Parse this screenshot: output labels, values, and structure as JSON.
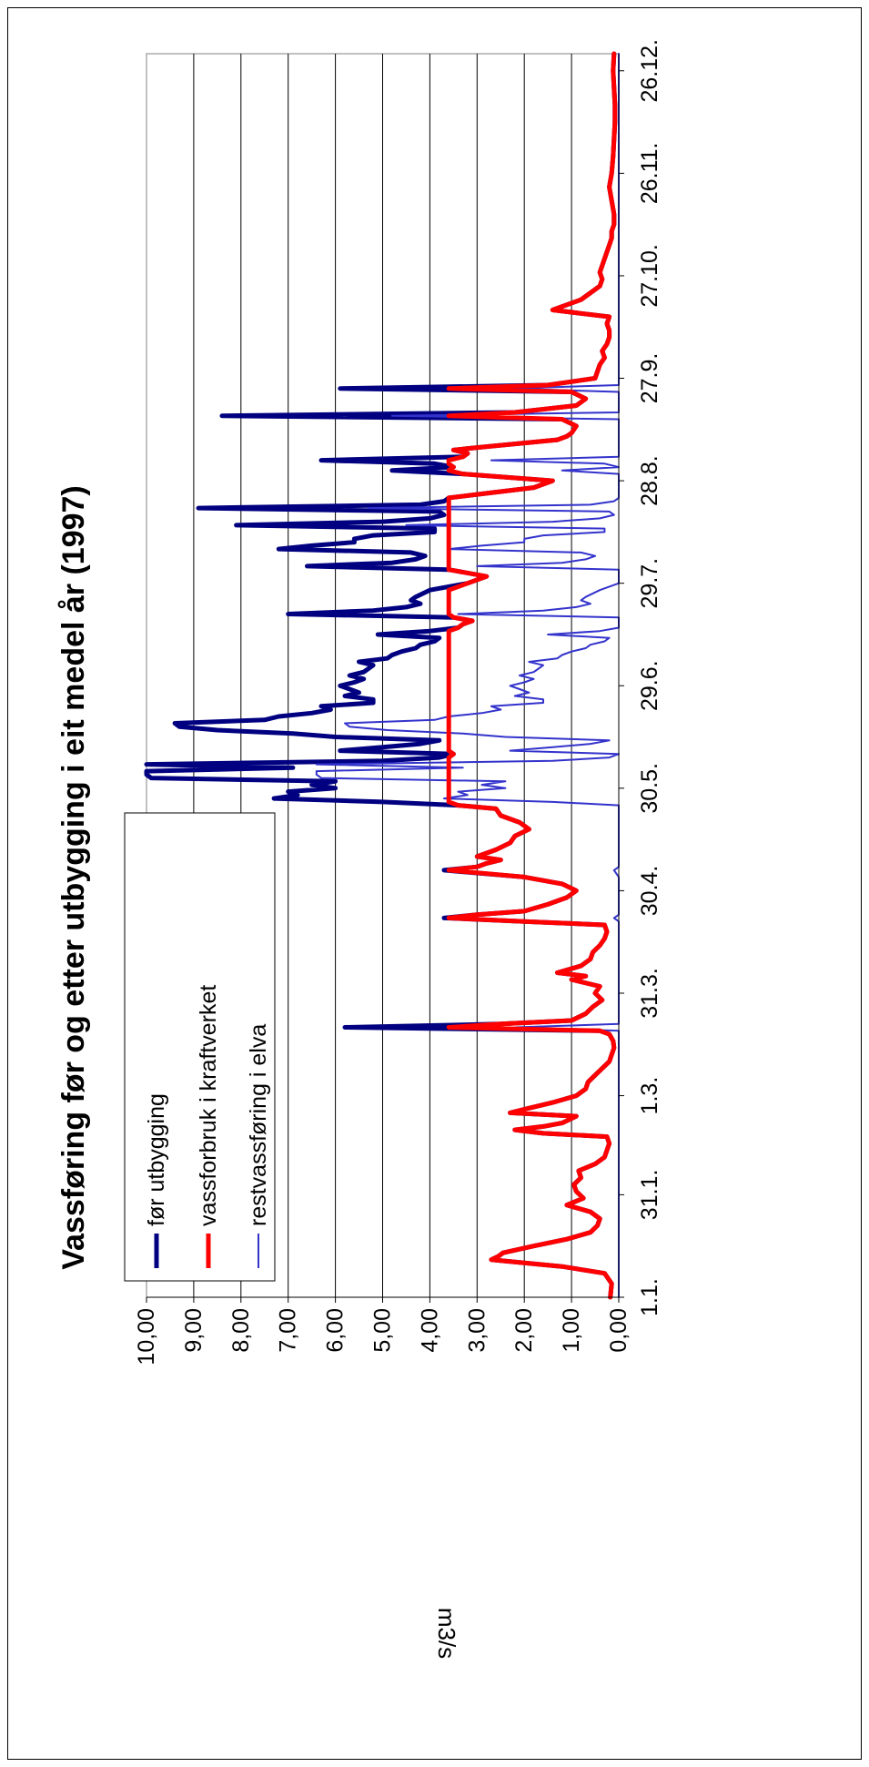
{
  "chart_data": {
    "type": "line",
    "title": "Vassføring før og etter utbygging i eit medel år (1997)",
    "ylabel": "m3/s",
    "xlabel": "",
    "ylim": [
      0,
      10
    ],
    "y_ticks": [
      "0,00",
      "1,00",
      "2,00",
      "3,00",
      "4,00",
      "5,00",
      "6,00",
      "7,00",
      "8,00",
      "9,00",
      "10,00"
    ],
    "x_ticks": [
      "1.1.",
      "31.1.",
      "1.3.",
      "31.3.",
      "30.4.",
      "30.5.",
      "29.6.",
      "29.7.",
      "28.8.",
      "27.9.",
      "27.10.",
      "26.11.",
      "26.12."
    ],
    "x_tick_days": [
      1,
      31,
      60,
      90,
      120,
      150,
      180,
      210,
      240,
      270,
      300,
      330,
      360
    ],
    "x_range_days": [
      1,
      365
    ],
    "grid": true,
    "orientation": "rotated-90",
    "legend_position": "top-left",
    "capacity": 3.6,
    "series": [
      {
        "name": "før utbygging",
        "color": "#000080",
        "points": [
          [
            1,
            0.18
          ],
          [
            5,
            0.15
          ],
          [
            8,
            0.3
          ],
          [
            10,
            1.2
          ],
          [
            12,
            2.7
          ],
          [
            13,
            2.55
          ],
          [
            14,
            2.45
          ],
          [
            16,
            1.8
          ],
          [
            18,
            1.1
          ],
          [
            20,
            0.6
          ],
          [
            22,
            0.45
          ],
          [
            24,
            0.4
          ],
          [
            26,
            0.6
          ],
          [
            28,
            1.1
          ],
          [
            30,
            0.75
          ],
          [
            32,
            0.9
          ],
          [
            34,
            0.95
          ],
          [
            36,
            0.8
          ],
          [
            38,
            0.85
          ],
          [
            40,
            0.5
          ],
          [
            42,
            0.3
          ],
          [
            44,
            0.25
          ],
          [
            46,
            0.2
          ],
          [
            48,
            0.25
          ],
          [
            49,
            1.6
          ],
          [
            50,
            2.2
          ],
          [
            51,
            1.6
          ],
          [
            52,
            1.2
          ],
          [
            54,
            0.9
          ],
          [
            55,
            2.3
          ],
          [
            56,
            2.0
          ],
          [
            58,
            1.4
          ],
          [
            60,
            0.9
          ],
          [
            62,
            0.7
          ],
          [
            64,
            0.65
          ],
          [
            66,
            0.5
          ],
          [
            68,
            0.35
          ],
          [
            70,
            0.2
          ],
          [
            72,
            0.15
          ],
          [
            74,
            0.1
          ],
          [
            76,
            0.12
          ],
          [
            78,
            0.2
          ],
          [
            79,
            0.4
          ],
          [
            80,
            5.8
          ],
          [
            81,
            2.5
          ],
          [
            82,
            1.0
          ],
          [
            84,
            0.7
          ],
          [
            86,
            0.55
          ],
          [
            88,
            0.35
          ],
          [
            90,
            0.5
          ],
          [
            92,
            0.4
          ],
          [
            94,
            1.0
          ],
          [
            95,
            0.7
          ],
          [
            96,
            1.3
          ],
          [
            98,
            0.8
          ],
          [
            100,
            0.6
          ],
          [
            102,
            0.55
          ],
          [
            104,
            0.4
          ],
          [
            106,
            0.3
          ],
          [
            108,
            0.25
          ],
          [
            110,
            0.3
          ],
          [
            111,
            2.0
          ],
          [
            112,
            3.7
          ],
          [
            113,
            3.0
          ],
          [
            114,
            2.0
          ],
          [
            116,
            1.5
          ],
          [
            118,
            1.1
          ],
          [
            120,
            0.9
          ],
          [
            122,
            1.2
          ],
          [
            124,
            2.0
          ],
          [
            126,
            3.7
          ],
          [
            127,
            3.0
          ],
          [
            128,
            2.8
          ],
          [
            129,
            2.5
          ],
          [
            130,
            3.0
          ],
          [
            132,
            2.6
          ],
          [
            134,
            2.3
          ],
          [
            136,
            2.2
          ],
          [
            138,
            1.9
          ],
          [
            140,
            2.1
          ],
          [
            142,
            2.5
          ],
          [
            144,
            2.6
          ],
          [
            145,
            3.4
          ],
          [
            146,
            5.0
          ],
          [
            147,
            7.3
          ],
          [
            148,
            6.8
          ],
          [
            149,
            7.0
          ],
          [
            150,
            6.0
          ],
          [
            151,
            6.5
          ],
          [
            152,
            6.0
          ],
          [
            153,
            9.9
          ],
          [
            154,
            10.0
          ],
          [
            155,
            10.0
          ],
          [
            156,
            6.9
          ],
          [
            157,
            10.0
          ],
          [
            158,
            5.0
          ],
          [
            159,
            3.8
          ],
          [
            160,
            3.5
          ],
          [
            161,
            5.9
          ],
          [
            162,
            5.0
          ],
          [
            163,
            4.2
          ],
          [
            164,
            3.8
          ],
          [
            165,
            6.0
          ],
          [
            166,
            6.9
          ],
          [
            167,
            8.5
          ],
          [
            168,
            9.3
          ],
          [
            169,
            9.4
          ],
          [
            170,
            7.5
          ],
          [
            171,
            7.2
          ],
          [
            172,
            6.5
          ],
          [
            173,
            6.1
          ],
          [
            174,
            6.3
          ],
          [
            175,
            5.2
          ],
          [
            176,
            5.2
          ],
          [
            177,
            5.8
          ],
          [
            178,
            5.5
          ],
          [
            179,
            5.7
          ],
          [
            180,
            5.9
          ],
          [
            181,
            5.6
          ],
          [
            182,
            5.4
          ],
          [
            183,
            5.7
          ],
          [
            184,
            5.4
          ],
          [
            185,
            5.3
          ],
          [
            186,
            5.2
          ],
          [
            187,
            5.5
          ],
          [
            188,
            4.9
          ],
          [
            189,
            4.8
          ],
          [
            190,
            4.6
          ],
          [
            191,
            4.3
          ],
          [
            192,
            4.2
          ],
          [
            193,
            3.9
          ],
          [
            194,
            3.8
          ],
          [
            195,
            5.1
          ],
          [
            196,
            4.0
          ],
          [
            197,
            3.4
          ],
          [
            198,
            3.3
          ],
          [
            199,
            3.1
          ],
          [
            200,
            3.5
          ],
          [
            201,
            7.0
          ],
          [
            202,
            5.2
          ],
          [
            203,
            4.5
          ],
          [
            204,
            4.2
          ],
          [
            205,
            4.4
          ],
          [
            206,
            4.3
          ],
          [
            208,
            4.0
          ],
          [
            210,
            3.2
          ],
          [
            212,
            2.8
          ],
          [
            214,
            3.6
          ],
          [
            215,
            6.6
          ],
          [
            216,
            4.8
          ],
          [
            217,
            4.3
          ],
          [
            218,
            4.1
          ],
          [
            219,
            4.4
          ],
          [
            220,
            7.2
          ],
          [
            221,
            6.5
          ],
          [
            222,
            5.6
          ],
          [
            223,
            5.6
          ],
          [
            224,
            5.2
          ],
          [
            225,
            3.9
          ],
          [
            226,
            3.9
          ],
          [
            227,
            8.1
          ],
          [
            228,
            5.0
          ],
          [
            229,
            4.0
          ],
          [
            230,
            3.7
          ],
          [
            231,
            3.8
          ],
          [
            232,
            8.9
          ],
          [
            233,
            4.2
          ],
          [
            234,
            3.7
          ],
          [
            235,
            3.6
          ],
          [
            236,
            3.0
          ],
          [
            238,
            1.8
          ],
          [
            240,
            1.4
          ],
          [
            242,
            3.3
          ],
          [
            243,
            4.8
          ],
          [
            244,
            3.5
          ],
          [
            245,
            3.9
          ],
          [
            246,
            6.3
          ],
          [
            247,
            3.3
          ],
          [
            248,
            3.2
          ],
          [
            249,
            3.5
          ],
          [
            250,
            2.8
          ],
          [
            252,
            1.3
          ],
          [
            253,
            1.1
          ],
          [
            254,
            1.0
          ],
          [
            256,
            0.9
          ],
          [
            258,
            1.2
          ],
          [
            259,
            8.4
          ],
          [
            260,
            2.2
          ],
          [
            262,
            0.9
          ],
          [
            264,
            0.7
          ],
          [
            266,
            1.0
          ],
          [
            267,
            5.9
          ],
          [
            268,
            1.5
          ],
          [
            270,
            0.5
          ],
          [
            272,
            0.45
          ],
          [
            274,
            0.4
          ],
          [
            276,
            0.3
          ],
          [
            278,
            0.35
          ],
          [
            280,
            0.25
          ],
          [
            282,
            0.2
          ],
          [
            284,
            0.2
          ],
          [
            286,
            0.25
          ],
          [
            288,
            0.2
          ],
          [
            290,
            1.4
          ],
          [
            291,
            1.2
          ],
          [
            293,
            0.8
          ],
          [
            295,
            0.6
          ],
          [
            297,
            0.4
          ],
          [
            299,
            0.35
          ],
          [
            301,
            0.4
          ],
          [
            303,
            0.35
          ],
          [
            305,
            0.3
          ],
          [
            307,
            0.25
          ],
          [
            309,
            0.2
          ],
          [
            311,
            0.15
          ],
          [
            313,
            0.15
          ],
          [
            315,
            0.1
          ],
          [
            318,
            0.1
          ],
          [
            322,
            0.15
          ],
          [
            326,
            0.2
          ],
          [
            330,
            0.15
          ],
          [
            335,
            0.12
          ],
          [
            340,
            0.1
          ],
          [
            345,
            0.08
          ],
          [
            350,
            0.08
          ],
          [
            355,
            0.1
          ],
          [
            360,
            0.12
          ],
          [
            365,
            0.1
          ]
        ]
      },
      {
        "name": "vassforbruk i kraftverket",
        "color": "#ff0000",
        "clip_to_capacity": true
      },
      {
        "name": "restvassføring i elva",
        "color": "#3333cc",
        "residual_of_capacity": true
      }
    ]
  }
}
